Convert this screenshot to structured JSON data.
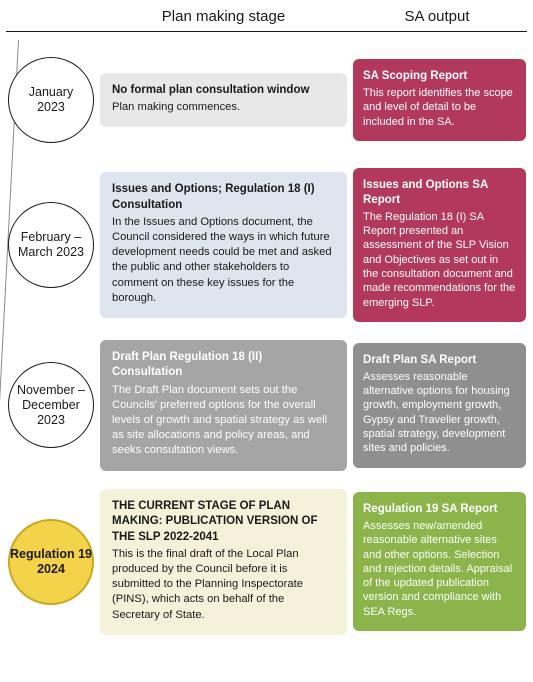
{
  "header": {
    "stage_label": "Plan making stage",
    "output_label": "SA output"
  },
  "colors": {
    "output1": "#b3395c",
    "output2": "#b3395c",
    "output3": "#8f8f8f",
    "output4": "#8bb44a",
    "current_fill": "#f3d34a"
  },
  "rows": [
    {
      "date": "January\n2023",
      "current": false,
      "stage_title": "No formal plan consultation window",
      "stage_body": "Plan making commences.",
      "output_title": "SA Scoping Report",
      "output_body": "This report identifies the scope and level of detail to be included in the SA."
    },
    {
      "date": "February –\nMarch 2023",
      "current": false,
      "stage_title": "Issues and Options; Regulation 18 (I) Consultation",
      "stage_body": "In the Issues and Options document, the Council considered the ways in which future development needs could be met and asked the public and other stakeholders to comment on these key issues for the borough.",
      "output_title": "Issues and Options SA Report",
      "output_body": "The Regulation 18 (I) SA Report presented an assessment of the SLP Vision and Objectives as set out in the consultation document and made recommendations for the emerging SLP."
    },
    {
      "date": "November –\nDecember\n2023",
      "current": false,
      "stage_title": "Draft Plan Regulation 18 (II) Consultation",
      "stage_body": "The Draft Plan document sets out the Councils' preferred options for the overall levels of growth and spatial strategy as well as site allocations and policy areas, and seeks consultation views.",
      "output_title": "Draft Plan SA Report",
      "output_body": "Assesses reasonable alternative options for housing growth, employment growth, Gypsy and Traveller growth, spatial strategy, development sites and policies."
    },
    {
      "date": "Regulation 19\n2024",
      "current": true,
      "stage_title": "THE CURRENT STAGE OF PLAN MAKING: PUBLICATION VERSION OF THE SLP 2022-2041",
      "stage_body": "This is the final draft of the Local Plan produced by the Council before it is submitted to the Planning Inspectorate (PINS), which acts on behalf of the Secretary of State.",
      "output_title": "Regulation 19 SA Report",
      "output_body": "Assesses new/amended reasonable alternative sites and other options. Selection and rejection details. Appraisal of the updated publication version and compliance with SEA Regs."
    }
  ]
}
